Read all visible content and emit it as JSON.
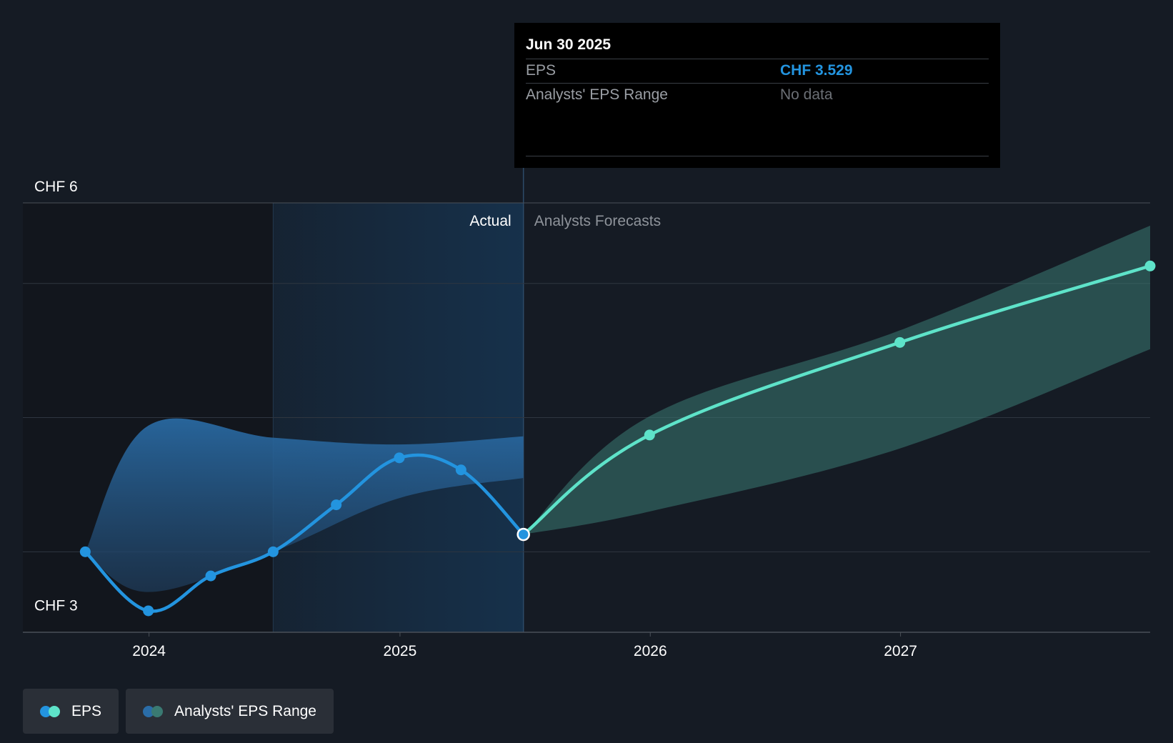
{
  "chart_data": {
    "type": "line",
    "y_axis": {
      "unit": "CHF",
      "ylim": [
        2.8,
        6.0
      ],
      "labels": [
        {
          "value": 6,
          "text": "CHF 6"
        },
        {
          "value": 3,
          "text": "CHF 3"
        }
      ],
      "gridlines": [
        6,
        5.4,
        4.4,
        3.4
      ]
    },
    "x_axis": {
      "xlim": [
        "2023-07-01",
        "2027-12-31"
      ],
      "ticks": [
        {
          "date": "2024-01-01",
          "label": "2024"
        },
        {
          "date": "2025-01-01",
          "label": "2025"
        },
        {
          "date": "2026-01-01",
          "label": "2026"
        },
        {
          "date": "2027-01-01",
          "label": "2027"
        }
      ]
    },
    "regions": {
      "actual_label": "Actual",
      "forecast_label": "Analysts Forecasts",
      "divider_date": "2025-06-30",
      "shade_start_date": "2024-06-30"
    },
    "series": [
      {
        "name": "EPS",
        "kind": "actual",
        "color": "#2394df",
        "points": [
          {
            "date": "2023-09-30",
            "value": 3.4
          },
          {
            "date": "2023-12-31",
            "value": 2.96
          },
          {
            "date": "2024-03-31",
            "value": 3.22
          },
          {
            "date": "2024-06-30",
            "value": 3.4
          },
          {
            "date": "2024-09-30",
            "value": 3.75
          },
          {
            "date": "2024-12-31",
            "value": 4.1
          },
          {
            "date": "2025-03-31",
            "value": 4.01
          },
          {
            "date": "2025-06-30",
            "value": 3.529
          }
        ]
      },
      {
        "name": "EPS",
        "kind": "forecast",
        "color": "#5ee3c9",
        "points": [
          {
            "date": "2025-06-30",
            "value": 3.529
          },
          {
            "date": "2025-12-31",
            "value": 4.27
          },
          {
            "date": "2026-12-31",
            "value": 4.96
          },
          {
            "date": "2027-12-31",
            "value": 5.53
          }
        ]
      }
    ],
    "ranges": [
      {
        "name": "Analysts' EPS Range",
        "kind": "actual",
        "color": "#2a6da8",
        "high": [
          {
            "date": "2023-09-30",
            "value": 3.4
          },
          {
            "date": "2023-12-31",
            "value": 4.34
          },
          {
            "date": "2024-06-30",
            "value": 4.25
          },
          {
            "date": "2024-12-31",
            "value": 4.2
          },
          {
            "date": "2025-06-30",
            "value": 4.26
          }
        ],
        "low": [
          {
            "date": "2023-09-30",
            "value": 3.4
          },
          {
            "date": "2023-12-31",
            "value": 3.1
          },
          {
            "date": "2024-06-30",
            "value": 3.4
          },
          {
            "date": "2024-12-31",
            "value": 3.8
          },
          {
            "date": "2025-06-30",
            "value": 3.95
          }
        ]
      },
      {
        "name": "Analysts' EPS Range",
        "kind": "forecast",
        "color": "#3a7a72",
        "high": [
          {
            "date": "2025-06-30",
            "value": 3.529
          },
          {
            "date": "2025-12-31",
            "value": 4.41
          },
          {
            "date": "2026-12-31",
            "value": 5.05
          },
          {
            "date": "2027-12-31",
            "value": 5.83
          }
        ],
        "low": [
          {
            "date": "2025-06-30",
            "value": 3.529
          },
          {
            "date": "2025-12-31",
            "value": 3.7
          },
          {
            "date": "2026-12-31",
            "value": 4.17
          },
          {
            "date": "2027-12-31",
            "value": 4.91
          }
        ]
      }
    ],
    "highlight": {
      "date": "2025-06-30",
      "value": 3.529
    }
  },
  "tooltip": {
    "date": "Jun 30 2025",
    "rows": [
      {
        "label": "EPS",
        "value": "CHF 3.529"
      },
      {
        "label": "Analysts' EPS Range",
        "value": "No data"
      }
    ]
  },
  "legend": {
    "items": [
      {
        "label": "EPS",
        "dot_colors": [
          "#2394df",
          "#5ee3c9"
        ]
      },
      {
        "label": "Analysts' EPS Range",
        "dot_colors": [
          "#2a6da8",
          "#3a7a72"
        ]
      }
    ]
  }
}
